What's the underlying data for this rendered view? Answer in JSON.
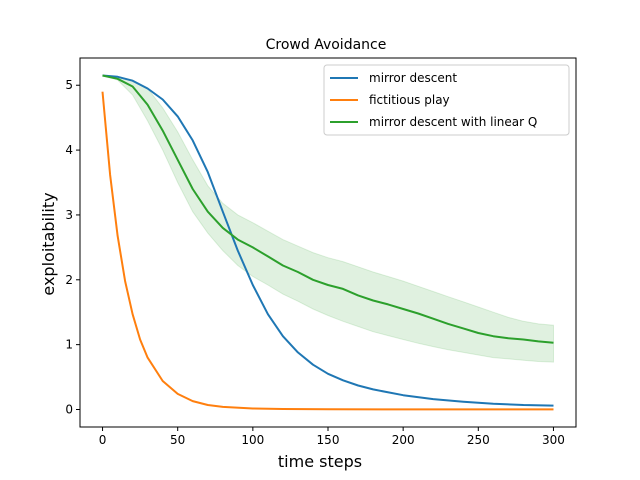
{
  "chart_data": {
    "type": "line",
    "title": "Crowd Avoidance",
    "xlabel": "time steps",
    "ylabel": "exploitability",
    "xlim": [
      -15,
      315
    ],
    "ylim": [
      -0.27,
      5.42
    ],
    "xticks": [
      0,
      50,
      100,
      150,
      200,
      250,
      300
    ],
    "yticks": [
      0,
      1,
      2,
      3,
      4,
      5
    ],
    "legend_position": "top-right",
    "series": [
      {
        "name": "mirror descent",
        "color": "#1f77b4",
        "x": [
          0,
          10,
          20,
          30,
          40,
          50,
          60,
          70,
          80,
          90,
          100,
          110,
          120,
          130,
          140,
          150,
          160,
          170,
          180,
          200,
          220,
          240,
          260,
          280,
          300
        ],
        "values": [
          5.15,
          5.13,
          5.07,
          4.95,
          4.78,
          4.52,
          4.15,
          3.66,
          3.05,
          2.45,
          1.92,
          1.47,
          1.13,
          0.88,
          0.69,
          0.55,
          0.45,
          0.37,
          0.31,
          0.22,
          0.16,
          0.12,
          0.09,
          0.07,
          0.06
        ]
      },
      {
        "name": "fictitious play",
        "color": "#ff7f0e",
        "x": [
          0,
          5,
          10,
          15,
          20,
          25,
          30,
          40,
          50,
          60,
          70,
          80,
          100,
          120,
          150,
          200,
          250,
          300
        ],
        "values": [
          4.9,
          3.62,
          2.68,
          1.98,
          1.47,
          1.08,
          0.8,
          0.44,
          0.24,
          0.13,
          0.07,
          0.04,
          0.015,
          0.008,
          0.003,
          0.002,
          0.002,
          0.002
        ]
      },
      {
        "name": "mirror descent with linear Q",
        "color": "#2ca02c",
        "x": [
          0,
          10,
          20,
          30,
          40,
          50,
          60,
          70,
          80,
          90,
          100,
          110,
          120,
          130,
          140,
          150,
          160,
          170,
          180,
          190,
          200,
          210,
          220,
          230,
          240,
          250,
          260,
          270,
          280,
          290,
          300
        ],
        "values": [
          5.15,
          5.1,
          4.98,
          4.7,
          4.3,
          3.85,
          3.4,
          3.05,
          2.8,
          2.62,
          2.5,
          2.36,
          2.22,
          2.12,
          2.0,
          1.92,
          1.86,
          1.76,
          1.68,
          1.62,
          1.55,
          1.48,
          1.4,
          1.32,
          1.25,
          1.18,
          1.13,
          1.1,
          1.08,
          1.05,
          1.03
        ],
        "band_low": [
          5.15,
          5.08,
          4.85,
          4.45,
          4.0,
          3.5,
          3.05,
          2.72,
          2.45,
          2.22,
          2.05,
          1.92,
          1.78,
          1.67,
          1.55,
          1.45,
          1.36,
          1.28,
          1.2,
          1.14,
          1.08,
          1.02,
          0.97,
          0.92,
          0.88,
          0.84,
          0.8,
          0.78,
          0.76,
          0.74,
          0.73
        ],
        "band_high": [
          5.15,
          5.13,
          5.08,
          4.95,
          4.65,
          4.28,
          3.85,
          3.45,
          3.18,
          3.0,
          2.88,
          2.75,
          2.62,
          2.52,
          2.42,
          2.34,
          2.28,
          2.2,
          2.12,
          2.05,
          1.98,
          1.9,
          1.82,
          1.74,
          1.66,
          1.58,
          1.5,
          1.42,
          1.36,
          1.32,
          1.3
        ]
      }
    ]
  }
}
